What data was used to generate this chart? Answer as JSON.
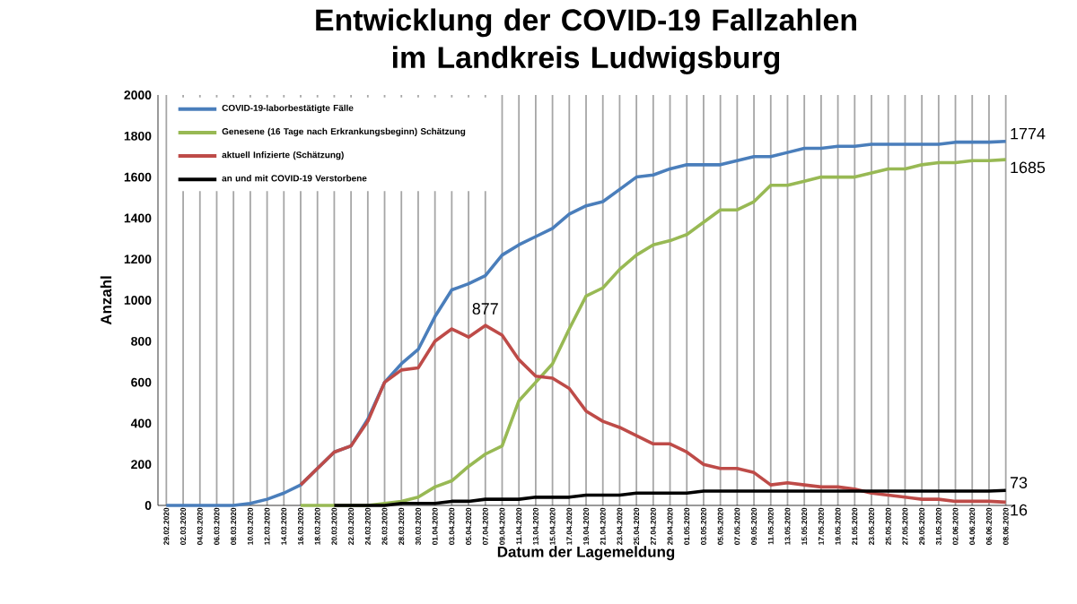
{
  "chart_data": {
    "type": "line",
    "title": "Entwicklung der COVID-19 Fallzahlen im Landkreis Ludwigsburg",
    "xlabel": "Datum der Lagemeldung",
    "ylabel": "Anzahl",
    "categories": [
      "29.02.2020",
      "02.03.2020",
      "04.03.2020",
      "06.03.2020",
      "08.03.2020",
      "10.03.2020",
      "12.03.2020",
      "14.03.2020",
      "16.03.2020",
      "18.03.2020",
      "20.03.2020",
      "22.03.2020",
      "24.03.2020",
      "26.03.2020",
      "28.03.2020",
      "30.03.2020",
      "01.04.2020",
      "03.04.2020",
      "05.04.2020",
      "07.04.2020",
      "09.04.2020",
      "11.04.2020",
      "13.04.2020",
      "15.04.2020",
      "17.04.2020",
      "19.04.2020",
      "21.04.2020",
      "23.04.2020",
      "25.04.2020",
      "27.04.2020",
      "29.04.2020",
      "01.05.2020",
      "03.05.2020",
      "05.05.2020",
      "07.05.2020",
      "09.05.2020",
      "11.05.2020",
      "13.05.2020",
      "15.05.2020",
      "17.05.2020",
      "19.05.2020",
      "21.05.2020",
      "23.05.2020",
      "25.05.2020",
      "27.05.2020",
      "29.05.2020",
      "31.05.2020",
      "02.06.2020",
      "04.06.2020",
      "06.06.2020",
      "08.06.2020"
    ],
    "ylim": [
      0,
      2000
    ],
    "yticks": [
      0,
      200,
      400,
      600,
      800,
      1000,
      1200,
      1400,
      1600,
      1800,
      2000
    ],
    "grid": "x",
    "legend": "top left",
    "line_style": "solid",
    "series": [
      {
        "name": "COVID-19-laborbestätigte Fälle",
        "color": "#4a7ebb",
        "values": [
          0,
          0,
          0,
          0,
          0,
          10,
          30,
          60,
          100,
          180,
          260,
          290,
          420,
          600,
          690,
          760,
          920,
          1050,
          1080,
          1120,
          1220,
          1270,
          1310,
          1350,
          1420,
          1460,
          1480,
          1540,
          1600,
          1610,
          1640,
          1660,
          1660,
          1660,
          1680,
          1700,
          1700,
          1720,
          1740,
          1740,
          1750,
          1750,
          1760,
          1760,
          1760,
          1760,
          1760,
          1770,
          1770,
          1770,
          1774
        ],
        "value_labels": [
          null,
          null,
          null,
          null,
          null,
          null,
          null,
          null,
          null,
          null,
          null,
          null,
          null,
          null,
          null,
          null,
          null,
          null,
          null,
          null,
          null,
          null,
          null,
          null,
          null,
          null,
          null,
          null,
          null,
          null,
          null,
          null,
          null,
          null,
          null,
          null,
          null,
          null,
          null,
          null,
          null,
          null,
          null,
          null,
          null,
          null,
          null,
          null,
          null,
          null,
          "1774"
        ]
      },
      {
        "name": "Genesene (16 Tage nach Erkrankungsbeginn) Schätzung",
        "color": "#98b954",
        "values": [
          null,
          null,
          null,
          null,
          null,
          null,
          null,
          null,
          0,
          0,
          0,
          0,
          0,
          10,
          20,
          40,
          90,
          120,
          190,
          250,
          290,
          510,
          600,
          690,
          860,
          1020,
          1060,
          1150,
          1220,
          1270,
          1290,
          1320,
          1380,
          1440,
          1440,
          1480,
          1560,
          1560,
          1580,
          1600,
          1600,
          1600,
          1620,
          1640,
          1640,
          1660,
          1670,
          1670,
          1680,
          1680,
          1685
        ],
        "value_labels": [
          null,
          null,
          null,
          null,
          null,
          null,
          null,
          null,
          null,
          null,
          null,
          null,
          null,
          null,
          null,
          null,
          null,
          null,
          null,
          null,
          null,
          null,
          null,
          null,
          null,
          null,
          null,
          null,
          null,
          null,
          null,
          null,
          null,
          null,
          null,
          null,
          null,
          null,
          null,
          null,
          null,
          null,
          null,
          null,
          null,
          null,
          null,
          null,
          null,
          null,
          "1685"
        ]
      },
      {
        "name": "aktuell Infizierte (Schätzung)",
        "color": "#be4b48",
        "values": [
          null,
          null,
          null,
          null,
          null,
          null,
          null,
          null,
          100,
          180,
          260,
          290,
          410,
          600,
          660,
          670,
          800,
          860,
          820,
          877,
          830,
          710,
          630,
          620,
          570,
          460,
          410,
          380,
          340,
          300,
          300,
          260,
          200,
          180,
          180,
          160,
          100,
          110,
          100,
          90,
          90,
          80,
          60,
          50,
          40,
          30,
          30,
          20,
          20,
          20,
          16
        ],
        "value_labels": [
          null,
          null,
          null,
          null,
          null,
          null,
          null,
          null,
          null,
          null,
          null,
          null,
          null,
          null,
          null,
          null,
          null,
          null,
          null,
          "877",
          null,
          null,
          null,
          null,
          null,
          null,
          null,
          null,
          null,
          null,
          null,
          null,
          null,
          null,
          null,
          null,
          null,
          null,
          null,
          null,
          null,
          null,
          null,
          null,
          null,
          null,
          null,
          null,
          null,
          null,
          "16"
        ]
      },
      {
        "name": "an und mit COVID-19 Verstorbene",
        "color": "#000000",
        "values": [
          null,
          null,
          null,
          null,
          null,
          null,
          null,
          null,
          null,
          null,
          0,
          0,
          0,
          0,
          10,
          10,
          10,
          20,
          20,
          30,
          30,
          30,
          40,
          40,
          40,
          50,
          50,
          50,
          60,
          60,
          60,
          60,
          70,
          70,
          70,
          70,
          70,
          70,
          70,
          70,
          70,
          70,
          70,
          70,
          70,
          70,
          70,
          70,
          70,
          70,
          73
        ],
        "value_labels": [
          null,
          null,
          null,
          null,
          null,
          null,
          null,
          null,
          null,
          null,
          null,
          null,
          null,
          null,
          null,
          null,
          null,
          null,
          null,
          null,
          null,
          null,
          null,
          null,
          null,
          null,
          null,
          null,
          null,
          null,
          null,
          null,
          null,
          null,
          null,
          null,
          null,
          null,
          null,
          null,
          null,
          null,
          null,
          null,
          null,
          null,
          null,
          null,
          null,
          null,
          "73"
        ]
      }
    ]
  }
}
